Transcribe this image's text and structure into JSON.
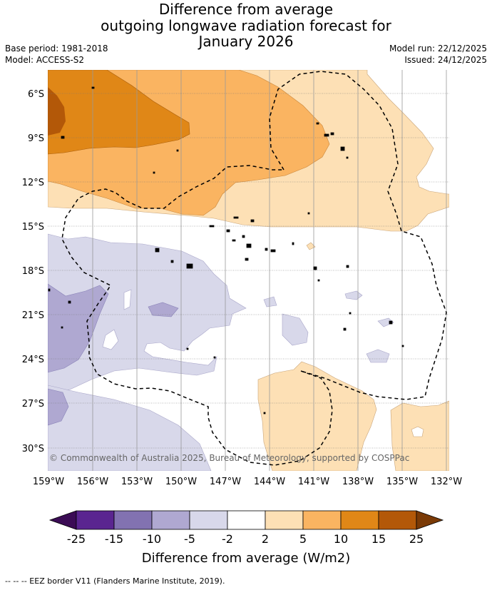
{
  "title": {
    "line1": "Difference from average",
    "line2": "outgoing longwave radiation forecast for",
    "line3": "January 2026"
  },
  "meta": {
    "base_period": "Base period: 1981-2018",
    "model": "Model: ACCESS-S2",
    "model_run": "Model run: 22/12/2025",
    "issued": "Issued: 24/12/2025"
  },
  "map": {
    "lat_labels": [
      "6°S",
      "9°S",
      "12°S",
      "15°S",
      "18°S",
      "21°S",
      "24°S",
      "27°S",
      "30°S"
    ],
    "lon_labels": [
      "159°W",
      "156°W",
      "153°W",
      "150°W",
      "147°W",
      "144°W",
      "141°W",
      "138°W",
      "135°W",
      "132°W"
    ],
    "copyright": "© Commonwealth of Australia 2025, Bureau of Meteorology, supported by COSPPac"
  },
  "colorbar": {
    "labels": [
      "-25",
      "-15",
      "-10",
      "-5",
      "-2",
      "2",
      "5",
      "10",
      "15",
      "25"
    ],
    "title": "Difference from average (W/m2)",
    "colors": {
      "under": "#3b0c55",
      "c1": "#5a2590",
      "c2": "#8272b1",
      "c3": "#afa8d1",
      "c4": "#d8d8ea",
      "c5": "#ffffff",
      "c6": "#fde0b5",
      "c7": "#fab461",
      "c8": "#e08717",
      "c9": "#b35808",
      "over": "#7a3a06"
    }
  },
  "footnote": "--  --  -- EEZ border V11 (Flanders Marine Institute, 2019)."
}
